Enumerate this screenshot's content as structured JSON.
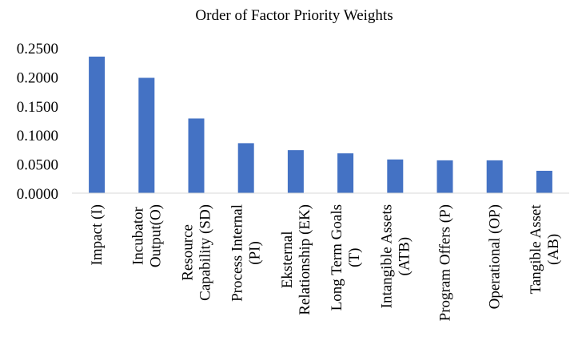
{
  "chart_data": {
    "type": "bar",
    "title": "Order of Factor Priority Weights",
    "xlabel": "",
    "ylabel": "",
    "ylim": [
      0,
      0.25
    ],
    "y_ticks": [
      "0.0000",
      "0.0500",
      "0.1000",
      "0.1500",
      "0.2000",
      "0.2500"
    ],
    "grid": false,
    "legend": "none",
    "bar_color": "#4472C4",
    "categories": [
      [
        "Impact (I)"
      ],
      [
        "Incubator",
        "Output(O)"
      ],
      [
        "Resource",
        "Capability (SD)"
      ],
      [
        "Process Internal",
        "(PI)"
      ],
      [
        "Eksternal",
        "Relationship (EK)"
      ],
      [
        "Long Term Goals",
        "(T)"
      ],
      [
        "Intangible Assets",
        "(ATB)"
      ],
      [
        "Program Offers (P)"
      ],
      [
        "Operational (OP)"
      ],
      [
        "Tangible Asset",
        "(AB)"
      ]
    ],
    "values": [
      0.235,
      0.1985,
      0.1285,
      0.086,
      0.074,
      0.0685,
      0.058,
      0.0565,
      0.0565,
      0.0385
    ]
  }
}
